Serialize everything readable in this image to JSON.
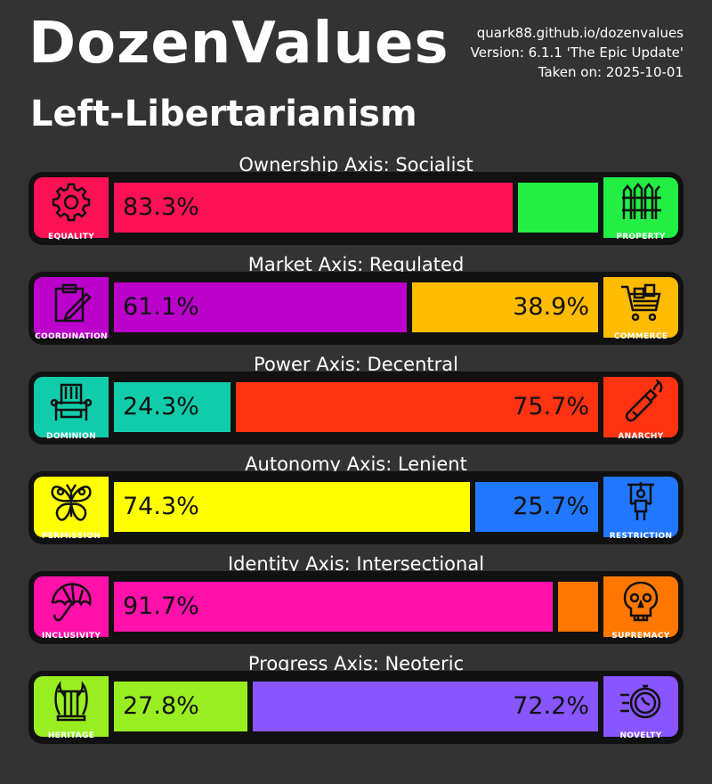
{
  "header": {
    "title": "DozenValues",
    "ideology": "Left-Libertarianism",
    "site": "quark88.github.io/dozenvalues",
    "version": "Version: 6.1.1 'The Epic Update'",
    "taken_on": "Taken on: 2025-10-01"
  },
  "chart_data": {
    "type": "bar",
    "orientation": "horizontal-stacked",
    "unit": "%",
    "axes": [
      {
        "label": "Ownership Axis: Socialist",
        "left_name": "EQUALITY",
        "right_name": "PROPERTY",
        "left_value": 83.3,
        "right_value": 16.7,
        "left_text": "83.3%",
        "right_text": "",
        "left_color": "#ff1155",
        "right_color": "#22ee44",
        "left_icon": "gear-icon",
        "right_icon": "fence-icon"
      },
      {
        "label": "Market Axis: Regulated",
        "left_name": "COORDINATION",
        "right_name": "COMMERCE",
        "left_value": 61.1,
        "right_value": 38.9,
        "left_text": "61.1%",
        "right_text": "38.9%",
        "left_color": "#bb00cc",
        "right_color": "#ffbb00",
        "left_icon": "clipboard-icon",
        "right_icon": "cart-icon"
      },
      {
        "label": "Power Axis: Decentral",
        "left_name": "DOMINION",
        "right_name": "ANARCHY",
        "left_value": 24.3,
        "right_value": 75.7,
        "left_text": "24.3%",
        "right_text": "75.7%",
        "left_color": "#11ccaa",
        "right_color": "#ff3311",
        "left_icon": "throne-icon",
        "right_icon": "molotov-icon"
      },
      {
        "label": "Autonomy Axis: Lenient",
        "left_name": "PERMISSION",
        "right_name": "RESTRICTION",
        "left_value": 74.3,
        "right_value": 25.7,
        "left_text": "74.3%",
        "right_text": "25.7%",
        "left_color": "#ffff00",
        "right_color": "#2277ff",
        "left_icon": "butterfly-icon",
        "right_icon": "puppet-icon"
      },
      {
        "label": "Identity Axis: Intersectional",
        "left_name": "INCLUSIVITY",
        "right_name": "SUPREMACY",
        "left_value": 91.7,
        "right_value": 8.3,
        "left_text": "91.7%",
        "right_text": "",
        "left_color": "#ff11aa",
        "right_color": "#ff7700",
        "left_icon": "umbrella-icon",
        "right_icon": "skull-icon"
      },
      {
        "label": "Progress Axis: Neoteric",
        "left_name": "HERITAGE",
        "right_name": "NOVELTY",
        "left_value": 27.8,
        "right_value": 72.2,
        "left_text": "27.8%",
        "right_text": "72.2%",
        "left_color": "#99ee22",
        "right_color": "#8855ff",
        "left_icon": "lyre-icon",
        "right_icon": "stopwatch-icon"
      }
    ]
  }
}
